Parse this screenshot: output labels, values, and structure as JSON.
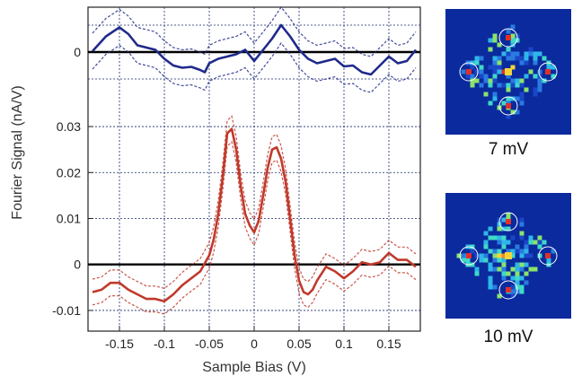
{
  "chart_data": {
    "type": "line",
    "xlabel": "Sample Bias (V)",
    "ylabel": "Fourier Signal (nA/V)",
    "xlim": [
      -0.185,
      0.185
    ],
    "xticks": [
      -0.15,
      -0.1,
      -0.05,
      0,
      0.05,
      0.1,
      0.15
    ],
    "xtick_labels": [
      "-0.15",
      "-0.1",
      "-0.05",
      "0",
      "0.05",
      "0.1",
      "0.15"
    ],
    "grid": true,
    "panels": [
      {
        "position": "top",
        "ylim": [
          -0.012,
          0.01
        ],
        "yticks": [
          0
        ],
        "ytick_labels": [
          "0"
        ],
        "series": [
          {
            "color": "#1f2a8a",
            "error_band": 0.004,
            "x": [
              -0.18,
              -0.165,
              -0.15,
              -0.14,
              -0.13,
              -0.12,
              -0.11,
              -0.1,
              -0.09,
              -0.08,
              -0.07,
              -0.06,
              -0.055,
              -0.05,
              -0.04,
              -0.03,
              -0.02,
              -0.01,
              0,
              0.01,
              0.02,
              0.03,
              0.04,
              0.05,
              0.06,
              0.07,
              0.08,
              0.09,
              0.1,
              0.11,
              0.12,
              0.13,
              0.14,
              0.15,
              0.16,
              0.17,
              0.18
            ],
            "y": [
              0.0002,
              0.0035,
              0.0055,
              0.004,
              0.0015,
              0.001,
              0.0005,
              -0.0015,
              -0.003,
              -0.0035,
              -0.0033,
              -0.004,
              -0.0045,
              -0.0025,
              -0.0015,
              -0.001,
              -0.0005,
              0.0005,
              -0.002,
              0.0005,
              0.003,
              0.006,
              0.0035,
              0.0005,
              -0.0015,
              -0.0025,
              -0.002,
              -0.0015,
              -0.0032,
              -0.003,
              -0.0045,
              -0.005,
              -0.003,
              -0.001,
              -0.0025,
              -0.002,
              0.0005
            ]
          }
        ]
      },
      {
        "position": "bottom",
        "ylim": [
          -0.0145,
          0.0345
        ],
        "yticks": [
          -0.01,
          0,
          0.01,
          0.02,
          0.03
        ],
        "ytick_labels": [
          "-0.01",
          "0",
          "0.01",
          "0.02",
          "0.03"
        ],
        "series": [
          {
            "color": "#c0392b",
            "error_band": 0.0028,
            "x": [
              -0.18,
              -0.17,
              -0.16,
              -0.15,
              -0.14,
              -0.13,
              -0.12,
              -0.11,
              -0.1,
              -0.09,
              -0.08,
              -0.07,
              -0.06,
              -0.05,
              -0.045,
              -0.04,
              -0.035,
              -0.03,
              -0.025,
              -0.02,
              -0.015,
              -0.01,
              -0.005,
              0,
              0.005,
              0.01,
              0.015,
              0.02,
              0.025,
              0.03,
              0.035,
              0.04,
              0.045,
              0.05,
              0.055,
              0.06,
              0.065,
              0.07,
              0.08,
              0.09,
              0.1,
              0.11,
              0.12,
              0.13,
              0.14,
              0.15,
              0.16,
              0.17,
              0.18
            ],
            "y": [
              -0.006,
              -0.0055,
              -0.004,
              -0.004,
              -0.0055,
              -0.0065,
              -0.0075,
              -0.0075,
              -0.008,
              -0.0065,
              -0.0045,
              -0.003,
              -0.0015,
              0.002,
              0.0055,
              0.011,
              0.019,
              0.0285,
              0.0295,
              0.025,
              0.017,
              0.011,
              0.0085,
              0.007,
              0.0095,
              0.015,
              0.021,
              0.025,
              0.0255,
              0.023,
              0.018,
              0.01,
              0.002,
              -0.0035,
              -0.006,
              -0.0065,
              -0.0055,
              -0.0035,
              -0.0005,
              -0.0015,
              -0.003,
              -0.0015,
              0.0005,
              0.0,
              0.0005,
              0.0025,
              0.001,
              0.001,
              -0.0005
            ]
          }
        ]
      }
    ]
  },
  "insets": [
    {
      "label": "7 mV"
    },
    {
      "label": "10 mV"
    }
  ],
  "colors": {
    "top_series": "#1f2a8a",
    "bottom_series": "#c0392b",
    "zero_line": "#000000",
    "grid": "#1a2a6a",
    "inset_background": "#0a2a9e"
  }
}
